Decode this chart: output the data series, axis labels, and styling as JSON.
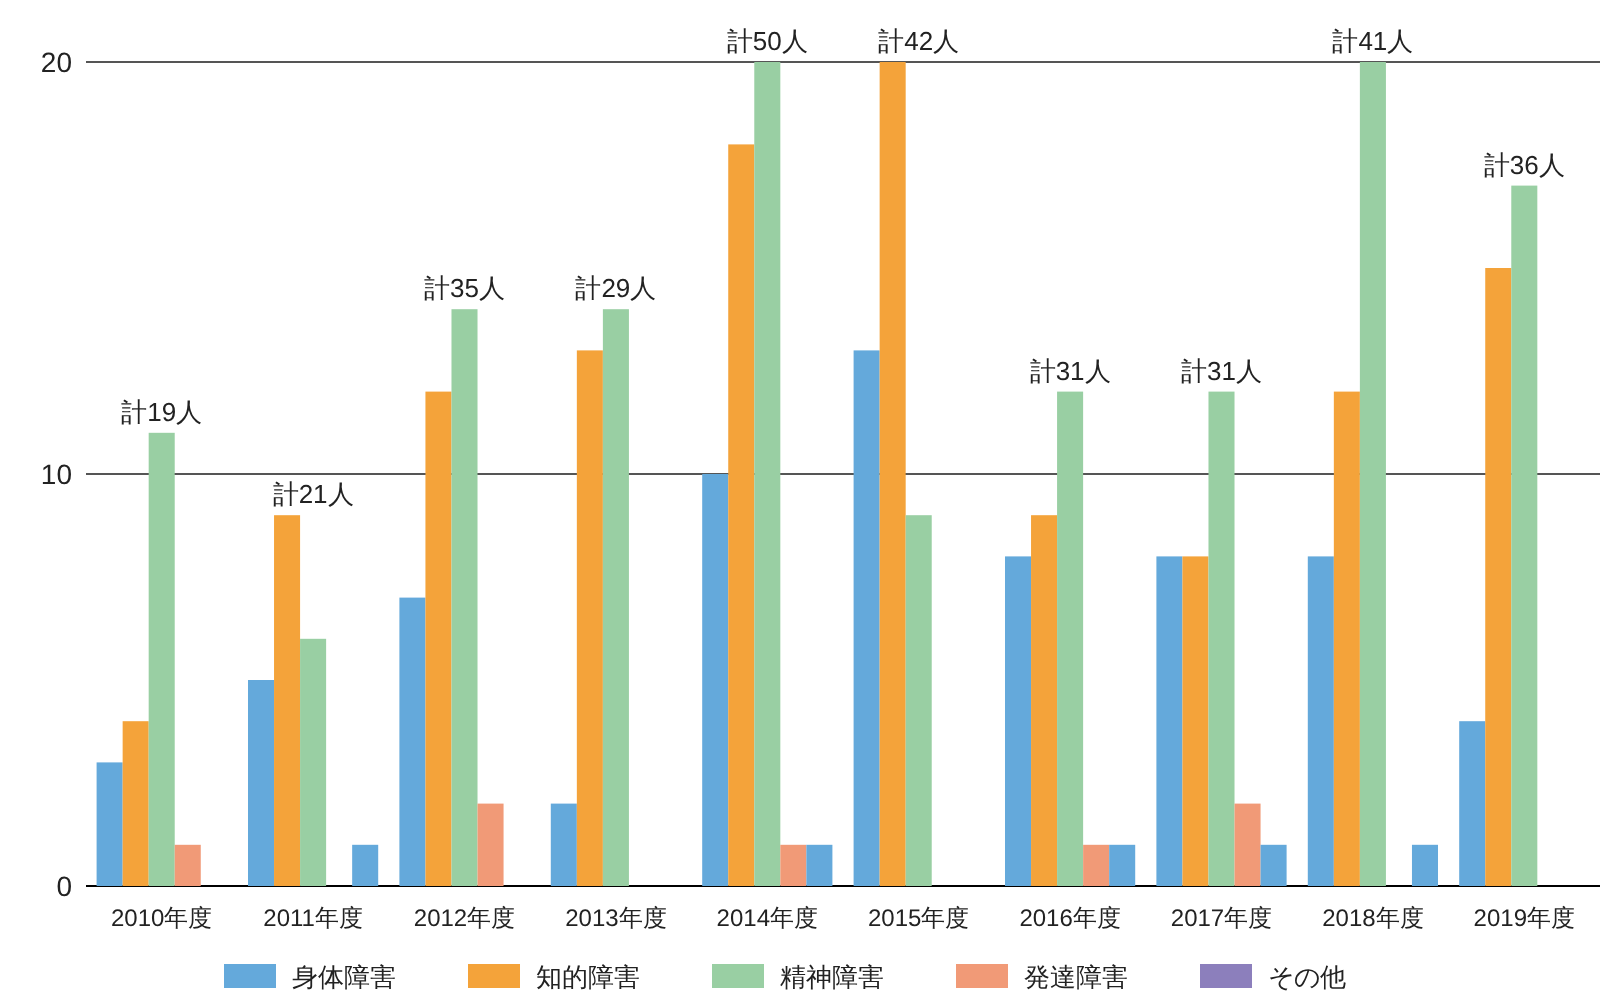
{
  "chart_data": {
    "type": "bar",
    "categories": [
      "2010年度",
      "2011年度",
      "2012年度",
      "2013年度",
      "2014年度",
      "2015年度",
      "2016年度",
      "2017年度",
      "2018年度",
      "2019年度"
    ],
    "series": [
      {
        "name": "身体障害",
        "color": "#64a9db",
        "values": [
          3,
          5,
          7,
          2,
          10,
          13,
          8,
          8,
          8,
          4
        ]
      },
      {
        "name": "知的障害",
        "color": "#f4a33a",
        "values": [
          4,
          9,
          12,
          13,
          18,
          20,
          9,
          8,
          12,
          15
        ]
      },
      {
        "name": "精神障害",
        "color": "#99cfa3",
        "values": [
          11,
          6,
          14,
          14,
          20,
          9,
          12,
          12,
          20,
          17
        ]
      },
      {
        "name": "発達障害",
        "color": "#f19a77",
        "values": [
          1,
          0,
          2,
          0,
          1,
          0,
          1,
          2,
          0,
          0
        ]
      },
      {
        "name": "その他",
        "color": "#8c7fbc",
        "colors": [
          "#64a9db",
          "#64a9db",
          "#64a9db",
          "#64a9db",
          "#64a9db",
          "#64a9db",
          "#64a9db",
          "#64a9db",
          "#64a9db",
          "#64a9db"
        ],
        "values": [
          0,
          1,
          0,
          0,
          1,
          0,
          1,
          1,
          1,
          0
        ]
      }
    ],
    "totals": [
      "計19人",
      "計21人",
      "計35人",
      "計29人",
      "計50人",
      "計42人",
      "計31人",
      "計31人",
      "計41人",
      "計36人"
    ],
    "ylim": [
      0,
      20
    ],
    "yticks": [
      0,
      10,
      20
    ],
    "grid": "y",
    "legend": "bottom"
  }
}
